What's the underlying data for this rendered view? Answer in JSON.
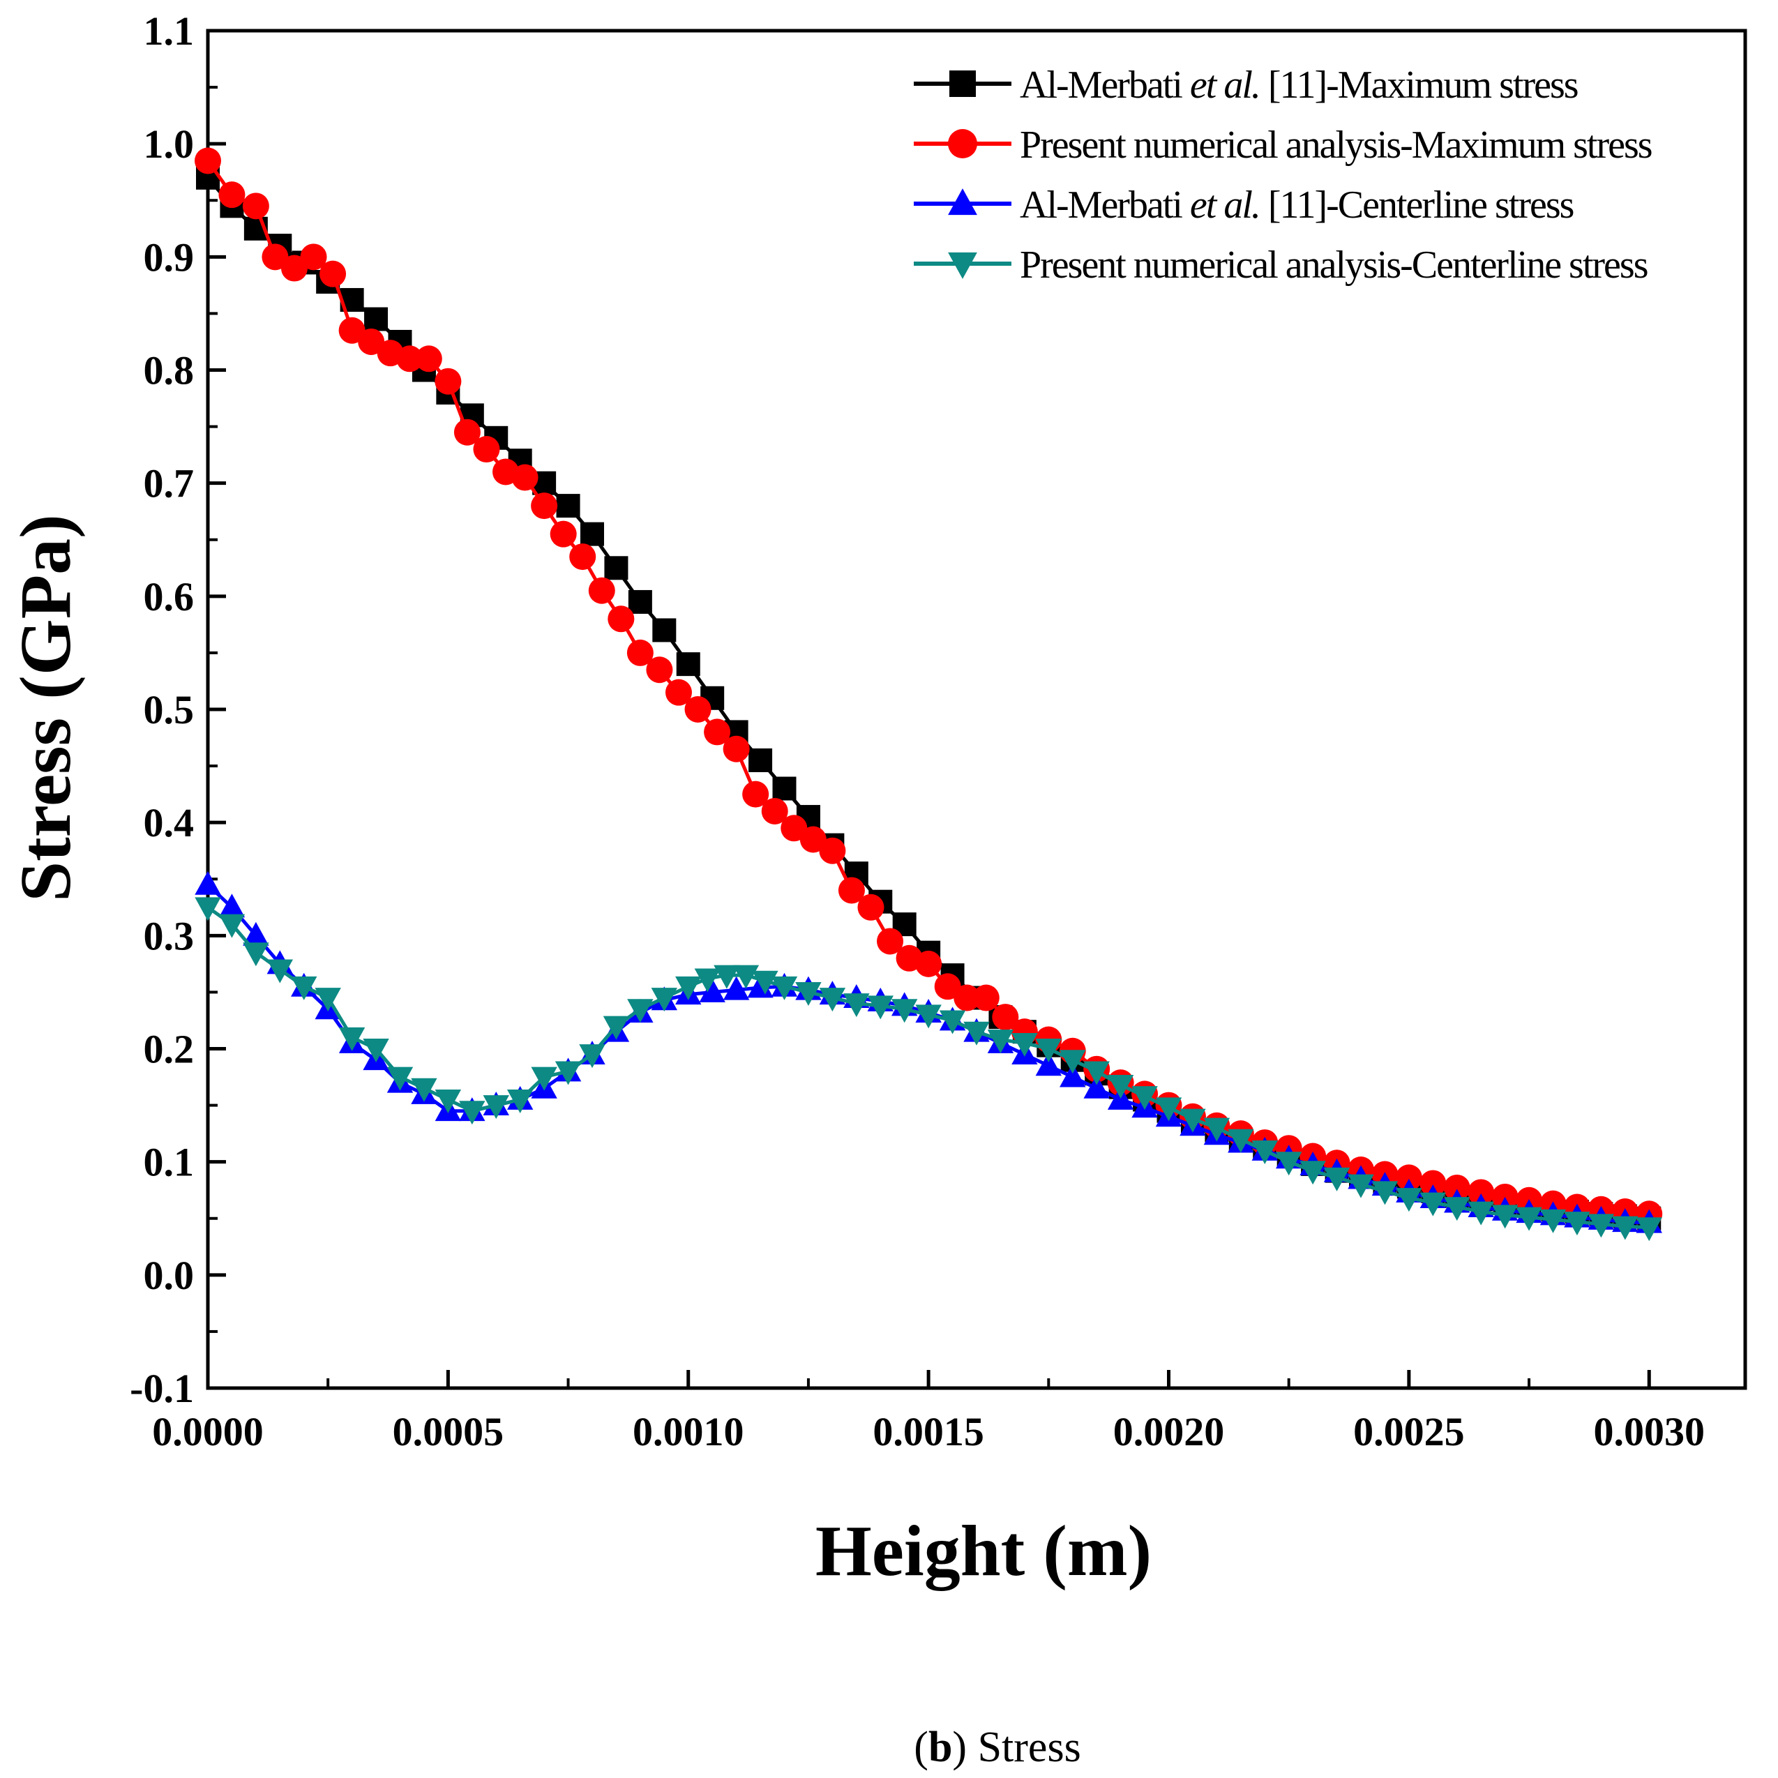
{
  "chart_data": {
    "type": "line",
    "xlabel": "Height (m)",
    "ylabel": "Stress (GPa)",
    "xlim": [
      0,
      0.0032
    ],
    "ylim": [
      -0.1,
      1.1
    ],
    "x_ticks": [
      0.0,
      0.0005,
      0.001,
      0.0015,
      0.002,
      0.0025,
      0.003
    ],
    "x_tick_labels": [
      "0.0000",
      "0.0005",
      "0.0010",
      "0.0015",
      "0.0020",
      "0.0025",
      "0.0030"
    ],
    "y_ticks": [
      -0.1,
      0.0,
      0.1,
      0.2,
      0.3,
      0.4,
      0.5,
      0.6,
      0.7,
      0.8,
      0.9,
      1.0,
      1.1
    ],
    "y_tick_labels": [
      "-0.1",
      "0.0",
      "0.1",
      "0.2",
      "0.3",
      "0.4",
      "0.5",
      "0.6",
      "0.7",
      "0.8",
      "0.9",
      "1.0",
      "1.1"
    ],
    "legend_position": "top-right",
    "series": [
      {
        "name": "Al-Merbati et al. [11]-Maximum stress",
        "legend_parts": [
          "Al-Merbati ",
          "et al.",
          " [11]-Maximum stress"
        ],
        "color": "#000000",
        "marker": "square",
        "x": [
          0.0,
          5e-05,
          0.0001,
          0.00015,
          0.0002,
          0.00025,
          0.0003,
          0.00035,
          0.0004,
          0.00045,
          0.0005,
          0.00055,
          0.0006,
          0.00065,
          0.0007,
          0.00075,
          0.0008,
          0.00085,
          0.0009,
          0.00095,
          0.001,
          0.00105,
          0.0011,
          0.00115,
          0.0012,
          0.00125,
          0.0013,
          0.00135,
          0.0014,
          0.00145,
          0.0015,
          0.00155,
          0.0016,
          0.00165,
          0.0017,
          0.00175,
          0.0018,
          0.00185,
          0.0019,
          0.00195,
          0.002,
          0.00205,
          0.0021,
          0.00215,
          0.0022,
          0.00225,
          0.0023,
          0.00235,
          0.0024,
          0.00245,
          0.0025,
          0.00255,
          0.0026,
          0.00265,
          0.0027,
          0.00275,
          0.0028,
          0.00285,
          0.0029,
          0.00295,
          0.003
        ],
        "y": [
          0.97,
          0.945,
          0.925,
          0.91,
          0.895,
          0.878,
          0.862,
          0.845,
          0.825,
          0.8,
          0.78,
          0.76,
          0.74,
          0.72,
          0.7,
          0.68,
          0.655,
          0.625,
          0.595,
          0.57,
          0.54,
          0.51,
          0.48,
          0.455,
          0.43,
          0.405,
          0.38,
          0.355,
          0.33,
          0.31,
          0.285,
          0.265,
          0.245,
          0.228,
          0.215,
          0.203,
          0.19,
          0.178,
          0.166,
          0.155,
          0.145,
          0.136,
          0.128,
          0.12,
          0.112,
          0.105,
          0.098,
          0.092,
          0.087,
          0.082,
          0.078,
          0.074,
          0.07,
          0.067,
          0.064,
          0.061,
          0.058,
          0.056,
          0.054,
          0.052,
          0.05
        ]
      },
      {
        "name": "Present numerical analysis-Maximum stress",
        "legend_parts": [
          "Present numerical analysis-Maximum stress"
        ],
        "color": "#ff0000",
        "marker": "circle",
        "x": [
          0.0,
          5e-05,
          0.0001,
          0.00014,
          0.00018,
          0.00022,
          0.00026,
          0.0003,
          0.00034,
          0.00038,
          0.00042,
          0.00046,
          0.0005,
          0.00054,
          0.00058,
          0.00062,
          0.00066,
          0.0007,
          0.00074,
          0.00078,
          0.00082,
          0.00086,
          0.0009,
          0.00094,
          0.00098,
          0.00102,
          0.00106,
          0.0011,
          0.00114,
          0.00118,
          0.00122,
          0.00126,
          0.0013,
          0.00134,
          0.00138,
          0.00142,
          0.00146,
          0.0015,
          0.00154,
          0.00158,
          0.00162,
          0.00166,
          0.0017,
          0.00175,
          0.0018,
          0.00185,
          0.0019,
          0.00195,
          0.002,
          0.00205,
          0.0021,
          0.00215,
          0.0022,
          0.00225,
          0.0023,
          0.00235,
          0.0024,
          0.00245,
          0.0025,
          0.00255,
          0.0026,
          0.00265,
          0.0027,
          0.00275,
          0.0028,
          0.00285,
          0.0029,
          0.00295,
          0.003
        ],
        "y": [
          0.985,
          0.955,
          0.945,
          0.9,
          0.89,
          0.9,
          0.885,
          0.835,
          0.825,
          0.815,
          0.81,
          0.81,
          0.79,
          0.745,
          0.73,
          0.71,
          0.705,
          0.68,
          0.655,
          0.635,
          0.605,
          0.58,
          0.55,
          0.535,
          0.515,
          0.5,
          0.48,
          0.465,
          0.425,
          0.41,
          0.395,
          0.385,
          0.375,
          0.34,
          0.325,
          0.295,
          0.28,
          0.275,
          0.255,
          0.245,
          0.245,
          0.228,
          0.215,
          0.208,
          0.198,
          0.182,
          0.17,
          0.16,
          0.15,
          0.14,
          0.132,
          0.125,
          0.117,
          0.112,
          0.105,
          0.099,
          0.093,
          0.089,
          0.086,
          0.081,
          0.077,
          0.073,
          0.069,
          0.066,
          0.063,
          0.06,
          0.058,
          0.056,
          0.054
        ]
      },
      {
        "name": "Al-Merbati et al. [11]-Centerline stress",
        "legend_parts": [
          "Al-Merbati ",
          "et al.",
          " [11]-Centerline stress"
        ],
        "color": "#0000ff",
        "marker": "triangle-up",
        "x": [
          0.0,
          5e-05,
          0.0001,
          0.00015,
          0.0002,
          0.00025,
          0.0003,
          0.00035,
          0.0004,
          0.00045,
          0.0005,
          0.00055,
          0.0006,
          0.00065,
          0.0007,
          0.00075,
          0.0008,
          0.00085,
          0.0009,
          0.00095,
          0.001,
          0.00105,
          0.0011,
          0.00115,
          0.0012,
          0.00125,
          0.0013,
          0.00135,
          0.0014,
          0.00145,
          0.0015,
          0.00155,
          0.0016,
          0.00165,
          0.0017,
          0.00175,
          0.0018,
          0.00185,
          0.0019,
          0.00195,
          0.002,
          0.00205,
          0.0021,
          0.00215,
          0.0022,
          0.00225,
          0.0023,
          0.00235,
          0.0024,
          0.00245,
          0.0025,
          0.00255,
          0.0026,
          0.00265,
          0.0027,
          0.00275,
          0.0028,
          0.00285,
          0.0029,
          0.00295,
          0.003
        ],
        "y": [
          0.345,
          0.325,
          0.3,
          0.275,
          0.255,
          0.235,
          0.205,
          0.19,
          0.17,
          0.16,
          0.145,
          0.145,
          0.15,
          0.155,
          0.165,
          0.18,
          0.195,
          0.215,
          0.232,
          0.243,
          0.248,
          0.25,
          0.252,
          0.254,
          0.255,
          0.252,
          0.248,
          0.245,
          0.242,
          0.238,
          0.232,
          0.225,
          0.215,
          0.205,
          0.195,
          0.185,
          0.175,
          0.165,
          0.155,
          0.148,
          0.14,
          0.132,
          0.124,
          0.117,
          0.11,
          0.103,
          0.097,
          0.091,
          0.085,
          0.079,
          0.073,
          0.068,
          0.064,
          0.06,
          0.057,
          0.055,
          0.053,
          0.051,
          0.049,
          0.047,
          0.046
        ]
      },
      {
        "name": "Present numerical analysis-Centerline stress",
        "legend_parts": [
          "Present numerical analysis-Centerline stress"
        ],
        "color": "#0d8a84",
        "marker": "triangle-down",
        "x": [
          0.0,
          5e-05,
          0.0001,
          0.00015,
          0.0002,
          0.00025,
          0.0003,
          0.00035,
          0.0004,
          0.00045,
          0.0005,
          0.00055,
          0.0006,
          0.00065,
          0.0007,
          0.00075,
          0.0008,
          0.00085,
          0.0009,
          0.00095,
          0.001,
          0.00104,
          0.00108,
          0.00112,
          0.00116,
          0.0012,
          0.00125,
          0.0013,
          0.00135,
          0.0014,
          0.00145,
          0.0015,
          0.00155,
          0.0016,
          0.00165,
          0.0017,
          0.00175,
          0.0018,
          0.00185,
          0.0019,
          0.00195,
          0.002,
          0.00205,
          0.0021,
          0.00215,
          0.0022,
          0.00225,
          0.0023,
          0.00235,
          0.0024,
          0.00245,
          0.0025,
          0.00255,
          0.0026,
          0.00265,
          0.0027,
          0.00275,
          0.0028,
          0.00285,
          0.0029,
          0.00295,
          0.003
        ],
        "y": [
          0.325,
          0.31,
          0.285,
          0.27,
          0.255,
          0.245,
          0.21,
          0.2,
          0.175,
          0.165,
          0.155,
          0.145,
          0.15,
          0.155,
          0.175,
          0.18,
          0.195,
          0.22,
          0.235,
          0.245,
          0.255,
          0.262,
          0.265,
          0.265,
          0.26,
          0.255,
          0.25,
          0.245,
          0.24,
          0.238,
          0.235,
          0.23,
          0.225,
          0.215,
          0.208,
          0.205,
          0.2,
          0.19,
          0.18,
          0.168,
          0.158,
          0.148,
          0.138,
          0.13,
          0.12,
          0.11,
          0.1,
          0.092,
          0.086,
          0.08,
          0.074,
          0.068,
          0.064,
          0.06,
          0.056,
          0.053,
          0.051,
          0.049,
          0.047,
          0.045,
          0.043,
          0.042
        ]
      }
    ]
  },
  "caption": {
    "letter": "b",
    "text": "Stress"
  }
}
